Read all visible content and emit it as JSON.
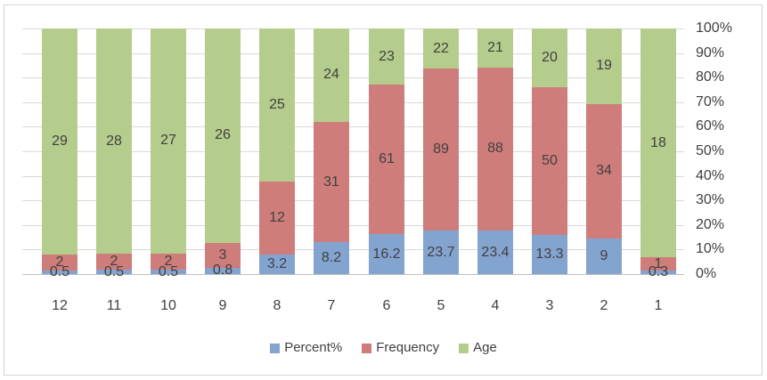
{
  "chart_data": {
    "type": "bar",
    "subtype": "stacked-100-percent",
    "title": "",
    "xlabel": "",
    "ylabel": "",
    "categories": [
      "12",
      "11",
      "10",
      "9",
      "8",
      "7",
      "6",
      "5",
      "4",
      "3",
      "2",
      "1"
    ],
    "series": [
      {
        "name": "Percent%",
        "color": "#84a4d0",
        "values": [
          0.5,
          0.5,
          0.5,
          0.8,
          3.2,
          8.2,
          16.2,
          23.7,
          23.4,
          13.3,
          9,
          0.3
        ]
      },
      {
        "name": "Frequency",
        "color": "#ce7d7a",
        "values": [
          2,
          2,
          2,
          3,
          12,
          31,
          61,
          89,
          88,
          50,
          34,
          1
        ]
      },
      {
        "name": "Age",
        "color": "#b5cd8c",
        "values": [
          29,
          28,
          27,
          26,
          25,
          24,
          23,
          22,
          21,
          20,
          19,
          18
        ]
      }
    ],
    "data_labels_visible": true,
    "y_axis": {
      "position": "right",
      "min": 0,
      "max": 100,
      "tick_labels_top_to_bottom": [
        "100%",
        "90%",
        "80%",
        "70%",
        "60%",
        "50%",
        "40%",
        "30%",
        "20%",
        "10%",
        "0%"
      ]
    },
    "grid": true,
    "legend": {
      "position": "bottom",
      "entries": [
        "Percent%",
        "Frequency",
        "Age"
      ]
    },
    "colors": {
      "gridline": "#d9d9d9",
      "axis_line": "#bfbfbf",
      "label_text": "#404040",
      "frame_border": "#d4d4d4",
      "background": "#ffffff"
    }
  }
}
